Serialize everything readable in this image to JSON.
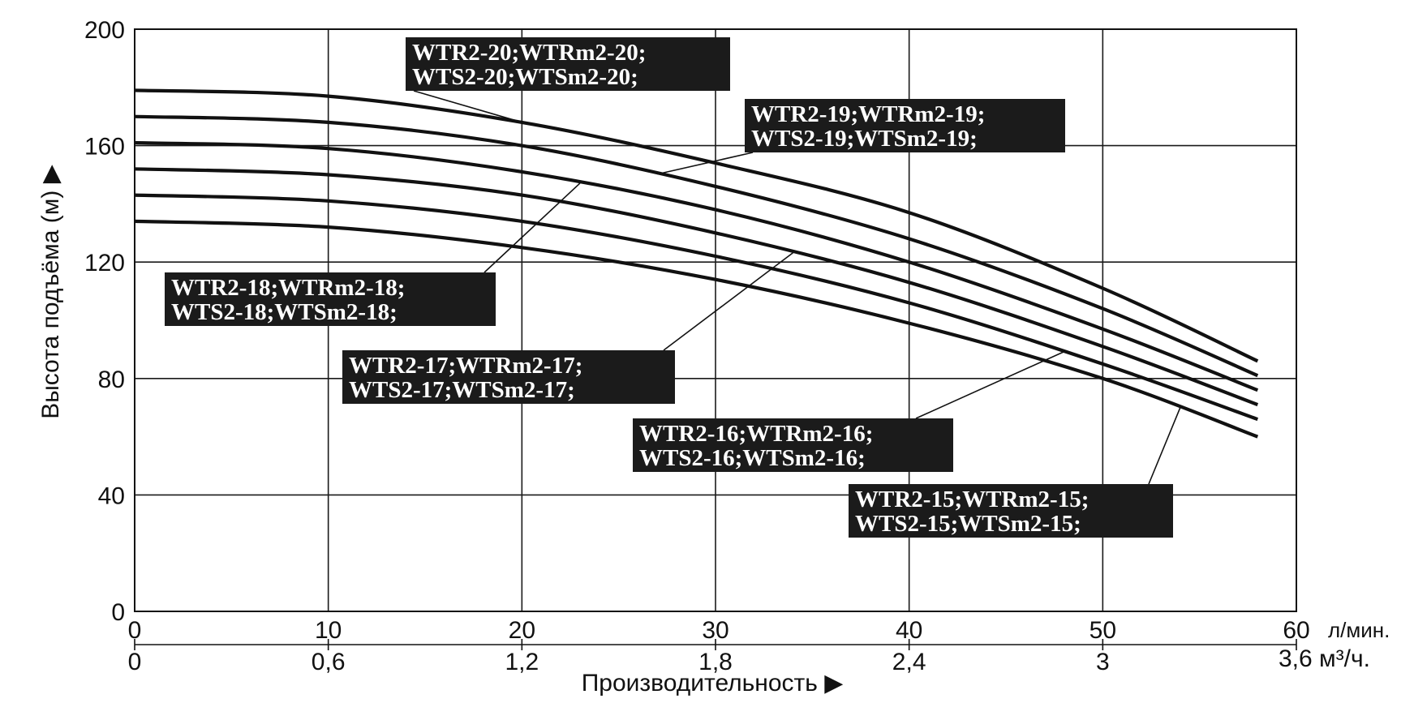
{
  "chart_data": {
    "type": "line",
    "title": "",
    "ylabel": "Высота подъёма (м) ▶",
    "xlabel": "Производительность ▶",
    "x_unit_primary": "л/мин.",
    "x_unit_secondary": "3,6 м³/ч.",
    "xlim": [
      0,
      60
    ],
    "ylim": [
      0,
      200
    ],
    "grid": true,
    "y_ticks": [
      "0",
      "40",
      "80",
      "120",
      "160",
      "200"
    ],
    "x_ticks_primary": [
      "0",
      "10",
      "20",
      "30",
      "40",
      "50",
      "60"
    ],
    "x_ticks_secondary": [
      "0",
      "0,6",
      "1,2",
      "1,8",
      "2,4",
      "3"
    ],
    "series": [
      {
        "name_line1": "WTR2-20;WTRm2-20;",
        "name_line2": "WTS2-20;WTSm2-20;",
        "x": [
          0,
          10,
          20,
          30,
          40,
          50,
          58
        ],
        "y": [
          179,
          177,
          168,
          154,
          137,
          111,
          86
        ]
      },
      {
        "name_line1": "WTR2-19;WTRm2-19;",
        "name_line2": "WTS2-19;WTSm2-19;",
        "x": [
          0,
          10,
          20,
          30,
          40,
          50,
          58
        ],
        "y": [
          170,
          168,
          160,
          146,
          128,
          104,
          81
        ]
      },
      {
        "name_line1": "WTR2-18;WTRm2-18;",
        "name_line2": "WTS2-18;WTSm2-18;",
        "x": [
          0,
          10,
          20,
          30,
          40,
          50,
          58
        ],
        "y": [
          161,
          159,
          151,
          138,
          120,
          97,
          76
        ]
      },
      {
        "name_line1": "WTR2-17;WTRm2-17;",
        "name_line2": "WTS2-17;WTSm2-17;",
        "x": [
          0,
          10,
          20,
          30,
          40,
          50,
          58
        ],
        "y": [
          152,
          150,
          143,
          130,
          113,
          91,
          71
        ]
      },
      {
        "name_line1": "WTR2-16;WTRm2-16;",
        "name_line2": "WTS2-16;WTSm2-16;",
        "x": [
          0,
          10,
          20,
          30,
          40,
          50,
          58
        ],
        "y": [
          143,
          141,
          134,
          122,
          106,
          85,
          66
        ]
      },
      {
        "name_line1": "WTR2-15;WTRm2-15;",
        "name_line2": "WTS2-15;WTSm2-15;",
        "x": [
          0,
          10,
          20,
          30,
          40,
          50,
          58
        ],
        "y": [
          134,
          132,
          125,
          114,
          99,
          80,
          60
        ]
      }
    ]
  }
}
